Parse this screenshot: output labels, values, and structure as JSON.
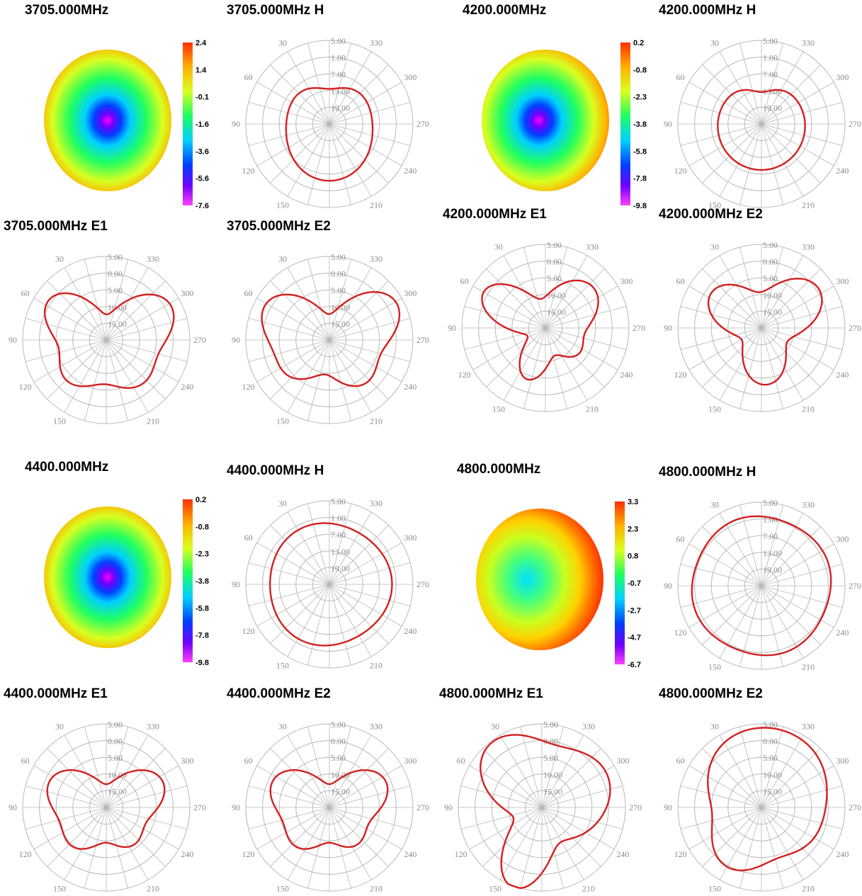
{
  "colors": {
    "trace": "#d42020",
    "grid": "#b8b8b8",
    "label": "#8c8c8c"
  },
  "radial_labels": [
    "5.00",
    "0.00",
    "5.00",
    "10.00",
    "15.00"
  ],
  "radial_labels_h": [
    "5.00",
    "1.00",
    "7.00",
    "13.00",
    "19.00"
  ],
  "angle_labels": [
    "30",
    "60",
    "90",
    "120",
    "150",
    "180",
    "210",
    "240",
    "270",
    "300",
    "330"
  ],
  "charts": [
    {
      "id": "p1",
      "title": "3705.000MHz",
      "kind": "surface",
      "cb": [
        "2.4",
        "1.4",
        "-0.1",
        "-1.6",
        "-3.6",
        "-5.6",
        "-7.6"
      ],
      "pattern": "cnt"
    },
    {
      "id": "p2",
      "title": "3705.000MHz  H",
      "kind": "polar",
      "labels": "h",
      "pattern": "h1"
    },
    {
      "id": "p3",
      "title": "4200.000MHz",
      "kind": "surface",
      "cb": [
        "0.2",
        "-0.8",
        "-2.3",
        "-3.8",
        "-5.8",
        "-7.8",
        "-9.8"
      ],
      "pattern": "right"
    },
    {
      "id": "p4",
      "title": "4200.000MHz  H",
      "kind": "polar",
      "labels": "h",
      "pattern": "h2"
    },
    {
      "id": "p5",
      "title": "3705.000MHz  E1",
      "kind": "polar",
      "labels": "e",
      "pattern": "bf1"
    },
    {
      "id": "p6",
      "title": "3705.000MHz  E2",
      "kind": "polar",
      "labels": "e",
      "pattern": "bf2"
    },
    {
      "id": "p7",
      "title": "4200.000MHz  E1",
      "kind": "polar",
      "labels": "e",
      "pattern": "e3"
    },
    {
      "id": "p8",
      "title": "4200.000MHz  E2",
      "kind": "polar",
      "labels": "e",
      "pattern": "e4"
    },
    {
      "id": "p9",
      "title": "4400.000MHz",
      "kind": "surface",
      "cb": [
        "0.2",
        "-0.8",
        "-2.3",
        "-3.8",
        "-5.8",
        "-7.8",
        "-9.8"
      ],
      "pattern": "cnt"
    },
    {
      "id": "p10",
      "title": "4400.000MHz  H",
      "kind": "polar",
      "labels": "h",
      "pattern": "circ1"
    },
    {
      "id": "p11",
      "title": "4800.000MHz",
      "kind": "surface",
      "cb": [
        "3.3",
        "2.3",
        "0.8",
        "-0.7",
        "-2.7",
        "-4.7",
        "-6.7"
      ],
      "pattern": "rightbig"
    },
    {
      "id": "p12",
      "title": "4800.000MHz  H",
      "kind": "polar",
      "labels": "h",
      "pattern": "circ2"
    },
    {
      "id": "p13",
      "title": "4400.000MHz  E1",
      "kind": "polar",
      "labels": "e",
      "pattern": "bf3"
    },
    {
      "id": "p14",
      "title": "4400.000MHz  E2",
      "kind": "polar",
      "labels": "e",
      "pattern": "bf3"
    },
    {
      "id": "p15",
      "title": "4800.000MHz  E1",
      "kind": "polar",
      "labels": "e",
      "pattern": "e5"
    },
    {
      "id": "p16",
      "title": "4800.000MHz  E2",
      "kind": "polar",
      "labels": "e",
      "pattern": "e6"
    }
  ]
}
